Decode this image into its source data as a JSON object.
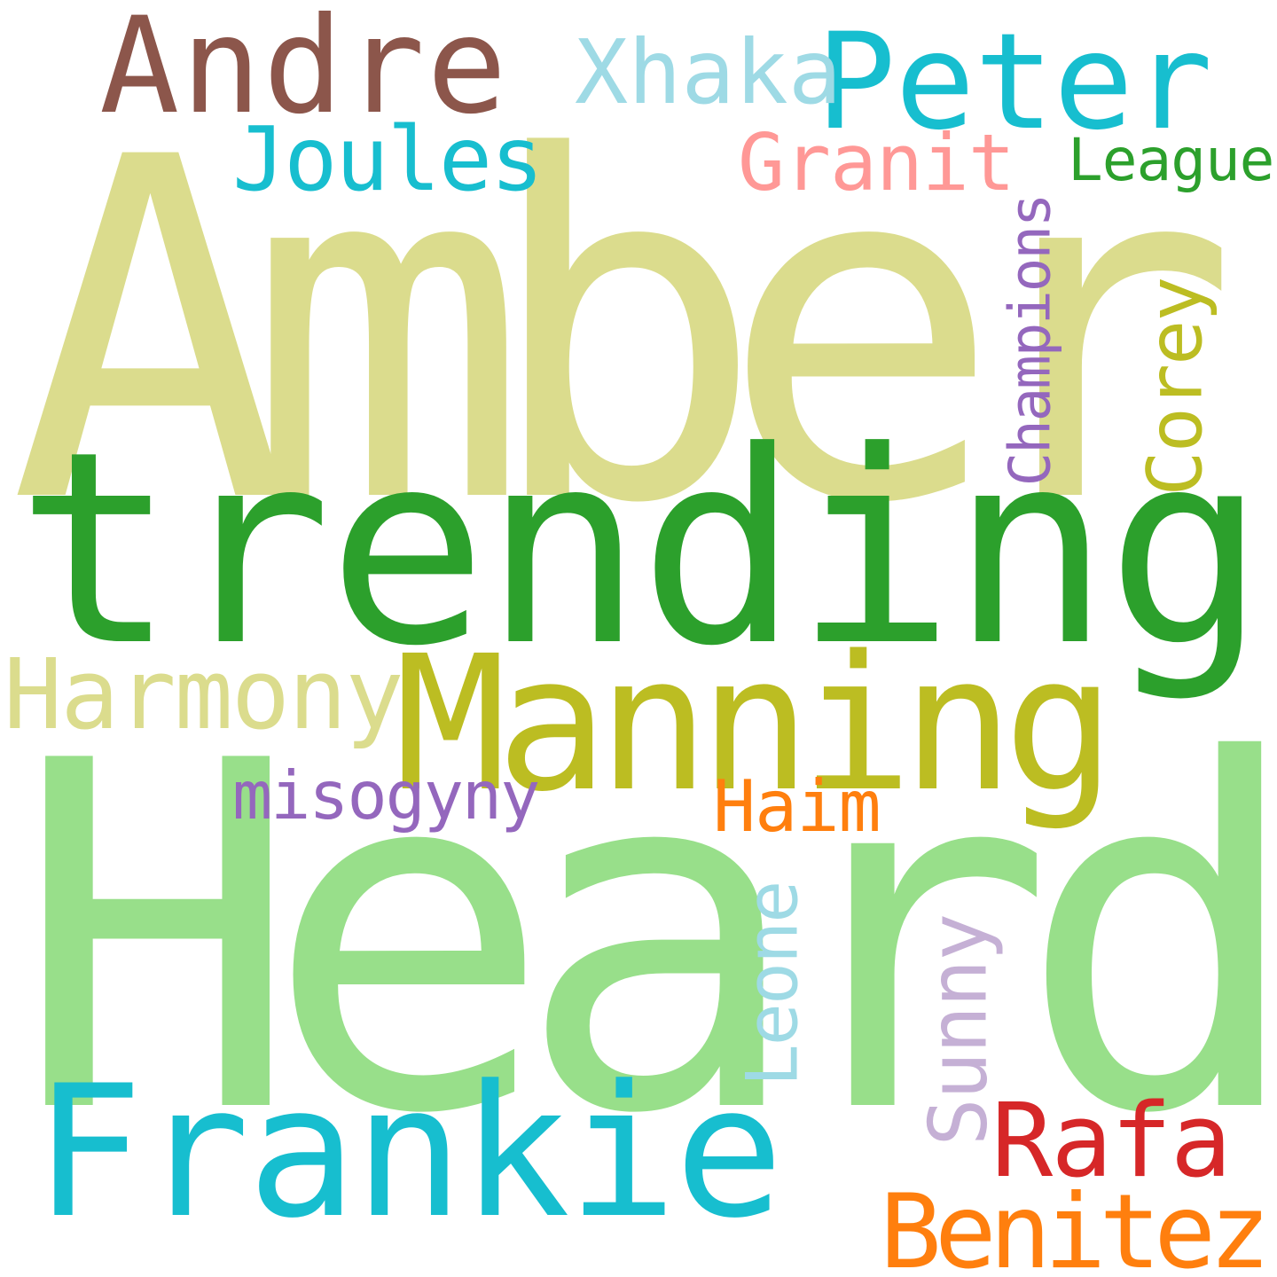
{
  "words": [
    {
      "text": "Amber",
      "color": "#dbdc8d",
      "orientation": "horizontal"
    },
    {
      "text": "trending",
      "color": "#2ca02c",
      "orientation": "horizontal"
    },
    {
      "text": "Heard",
      "color": "#98df8a",
      "orientation": "horizontal"
    },
    {
      "text": "Manning",
      "color": "#bcbd22",
      "orientation": "horizontal"
    },
    {
      "text": "Frankie",
      "color": "#17becf",
      "orientation": "horizontal"
    },
    {
      "text": "Andre",
      "color": "#8c564b",
      "orientation": "horizontal"
    },
    {
      "text": "Peter",
      "color": "#17becf",
      "orientation": "horizontal"
    },
    {
      "text": "Xhaka",
      "color": "#9edae5",
      "orientation": "horizontal"
    },
    {
      "text": "Joules",
      "color": "#17becf",
      "orientation": "horizontal"
    },
    {
      "text": "Granit",
      "color": "#ff9896",
      "orientation": "horizontal"
    },
    {
      "text": "League",
      "color": "#2ca02c",
      "orientation": "horizontal"
    },
    {
      "text": "Champions",
      "color": "#9467bd",
      "orientation": "vertical"
    },
    {
      "text": "Corey",
      "color": "#bcbd22",
      "orientation": "vertical"
    },
    {
      "text": "Harmony",
      "color": "#dbdc8d",
      "orientation": "horizontal"
    },
    {
      "text": "misogyny",
      "color": "#9467bd",
      "orientation": "horizontal"
    },
    {
      "text": "Haim",
      "color": "#ff7f0e",
      "orientation": "horizontal"
    },
    {
      "text": "Leone",
      "color": "#9edae5",
      "orientation": "vertical"
    },
    {
      "text": "Sunny",
      "color": "#c5b0d5",
      "orientation": "vertical"
    },
    {
      "text": "Rafa",
      "color": "#d62728",
      "orientation": "horizontal"
    },
    {
      "text": "Benitez",
      "color": "#ff7f0e",
      "orientation": "horizontal"
    }
  ]
}
